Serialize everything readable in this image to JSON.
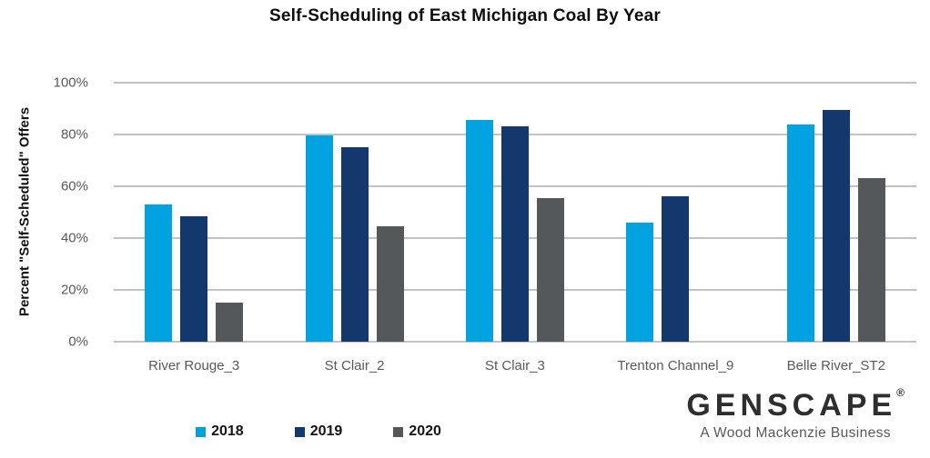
{
  "chart_data": {
    "type": "bar",
    "title": "Self-Scheduling of East Michigan Coal By Year",
    "ylabel": "Percent \"Self-Scheduled\" Offers",
    "xlabel": "",
    "categories": [
      "River Rouge_3",
      "St Clair_2",
      "St Clair_3",
      "Trenton Channel_9",
      "Belle River_ST2"
    ],
    "series": [
      {
        "name": "2018",
        "color": "#00A2DF",
        "values": [
          53,
          79.5,
          85.5,
          46,
          84
        ]
      },
      {
        "name": "2019",
        "color": "#12386E",
        "values": [
          48.5,
          75,
          83,
          56,
          89.5
        ]
      },
      {
        "name": "2020",
        "color": "#55585A",
        "values": [
          15,
          44.5,
          55.5,
          0,
          63
        ]
      }
    ],
    "ylim": [
      0,
      100
    ],
    "yticks": [
      "0%",
      "20%",
      "40%",
      "60%",
      "80%",
      "100%"
    ],
    "grid": true,
    "legend_position": "bottom"
  },
  "branding": {
    "logo_text": "GENSCAPE",
    "registered_mark": "®",
    "tagline": "A Wood Mackenzie Business"
  }
}
